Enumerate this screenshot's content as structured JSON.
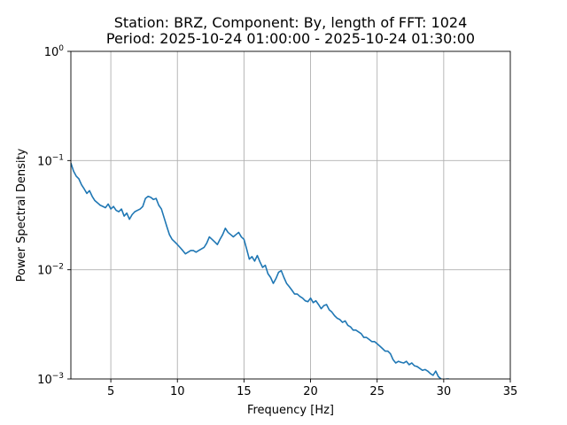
{
  "chart_data": {
    "type": "line",
    "title_line1": "Station: BRZ, Component: By, length of FFT: 1024",
    "title_line2": "Period: 2025-10-24 01:00:00 - 2025-10-24 01:30:00",
    "xlabel": "Frequency [Hz]",
    "ylabel": "Power Spectral Density",
    "xlim": [
      2,
      35
    ],
    "ylim": [
      0.001,
      1
    ],
    "yscale": "log",
    "grid": true,
    "xticks": [
      {
        "value": 5,
        "label": "5"
      },
      {
        "value": 10,
        "label": "10"
      },
      {
        "value": 15,
        "label": "15"
      },
      {
        "value": 20,
        "label": "20"
      },
      {
        "value": 25,
        "label": "25"
      },
      {
        "value": 30,
        "label": "30"
      },
      {
        "value": 35,
        "label": "35"
      }
    ],
    "yticks": [
      {
        "value": 0.001,
        "base": "10",
        "exp": "−3"
      },
      {
        "value": 0.01,
        "base": "10",
        "exp": "−2"
      },
      {
        "value": 0.1,
        "base": "10",
        "exp": "−1"
      },
      {
        "value": 1,
        "base": "10",
        "exp": "0"
      }
    ],
    "line_color": "#1f77b4",
    "series": [
      {
        "x": [
          2.0,
          2.2,
          2.4,
          2.6,
          2.8,
          3.0,
          3.2,
          3.4,
          3.6,
          3.8,
          4.0,
          4.2,
          4.4,
          4.6,
          4.8,
          5.0,
          5.2,
          5.4,
          5.6,
          5.8,
          6.0,
          6.2,
          6.4,
          6.6,
          6.8,
          7.0,
          7.2,
          7.4,
          7.6,
          7.8,
          8.0,
          8.2,
          8.4,
          8.6,
          8.8,
          9.0,
          9.2,
          9.4,
          9.6,
          9.8,
          10.0,
          10.2,
          10.4,
          10.6,
          10.8,
          11.0,
          11.2,
          11.4,
          11.6,
          11.8,
          12.0,
          12.2,
          12.4,
          12.6,
          12.8,
          13.0,
          13.2,
          13.4,
          13.6,
          13.8,
          14.0,
          14.2,
          14.4,
          14.6,
          14.8,
          15.0,
          15.2,
          15.4,
          15.6,
          15.8,
          16.0,
          16.2,
          16.4,
          16.6,
          16.8,
          17.0,
          17.2,
          17.4,
          17.6,
          17.8,
          18.0,
          18.2,
          18.4,
          18.6,
          18.8,
          19.0,
          19.2,
          19.4,
          19.6,
          19.8,
          20.0,
          20.2,
          20.4,
          20.6,
          20.8,
          21.0,
          21.2,
          21.4,
          21.6,
          21.8,
          22.0,
          22.2,
          22.4,
          22.6,
          22.8,
          23.0,
          23.2,
          23.4,
          23.6,
          23.8,
          24.0,
          24.2,
          24.4,
          24.6,
          24.8,
          25.0,
          25.2,
          25.4,
          25.6,
          25.8,
          26.0,
          26.2,
          26.4,
          26.6,
          26.8,
          27.0,
          27.2,
          27.4,
          27.6,
          27.8,
          28.0,
          28.2,
          28.4,
          28.6,
          28.8,
          29.0,
          29.2,
          29.4,
          29.6,
          29.8,
          30.0,
          30.2,
          30.4
        ],
        "y": [
          0.095,
          0.08,
          0.072,
          0.068,
          0.06,
          0.055,
          0.05,
          0.053,
          0.047,
          0.043,
          0.041,
          0.039,
          0.038,
          0.037,
          0.04,
          0.036,
          0.038,
          0.035,
          0.034,
          0.036,
          0.031,
          0.033,
          0.029,
          0.032,
          0.034,
          0.035,
          0.036,
          0.038,
          0.045,
          0.047,
          0.046,
          0.044,
          0.045,
          0.039,
          0.036,
          0.03,
          0.025,
          0.021,
          0.019,
          0.018,
          0.017,
          0.016,
          0.015,
          0.014,
          0.0145,
          0.015,
          0.015,
          0.0145,
          0.015,
          0.0155,
          0.016,
          0.0175,
          0.02,
          0.019,
          0.018,
          0.017,
          0.019,
          0.021,
          0.024,
          0.022,
          0.021,
          0.02,
          0.021,
          0.022,
          0.02,
          0.019,
          0.0155,
          0.0125,
          0.0132,
          0.012,
          0.0135,
          0.0118,
          0.0105,
          0.011,
          0.0092,
          0.0085,
          0.0075,
          0.0083,
          0.0095,
          0.0098,
          0.0085,
          0.0075,
          0.007,
          0.0065,
          0.006,
          0.006,
          0.0057,
          0.0055,
          0.0052,
          0.0051,
          0.0055,
          0.005,
          0.0052,
          0.0048,
          0.0044,
          0.0047,
          0.0048,
          0.0043,
          0.0041,
          0.0038,
          0.0036,
          0.0035,
          0.0033,
          0.0034,
          0.0031,
          0.003,
          0.0028,
          0.0028,
          0.0027,
          0.0026,
          0.0024,
          0.0024,
          0.0023,
          0.0022,
          0.0022,
          0.0021,
          0.002,
          0.0019,
          0.0018,
          0.0018,
          0.0017,
          0.0015,
          0.0014,
          0.00145,
          0.00142,
          0.0014,
          0.00145,
          0.00135,
          0.0014,
          0.00132,
          0.0013,
          0.00125,
          0.0012,
          0.00122,
          0.00118,
          0.00112,
          0.00108,
          0.00118,
          0.00105,
          0.001,
          0.00095,
          0.001,
          0.001
        ]
      }
    ]
  }
}
